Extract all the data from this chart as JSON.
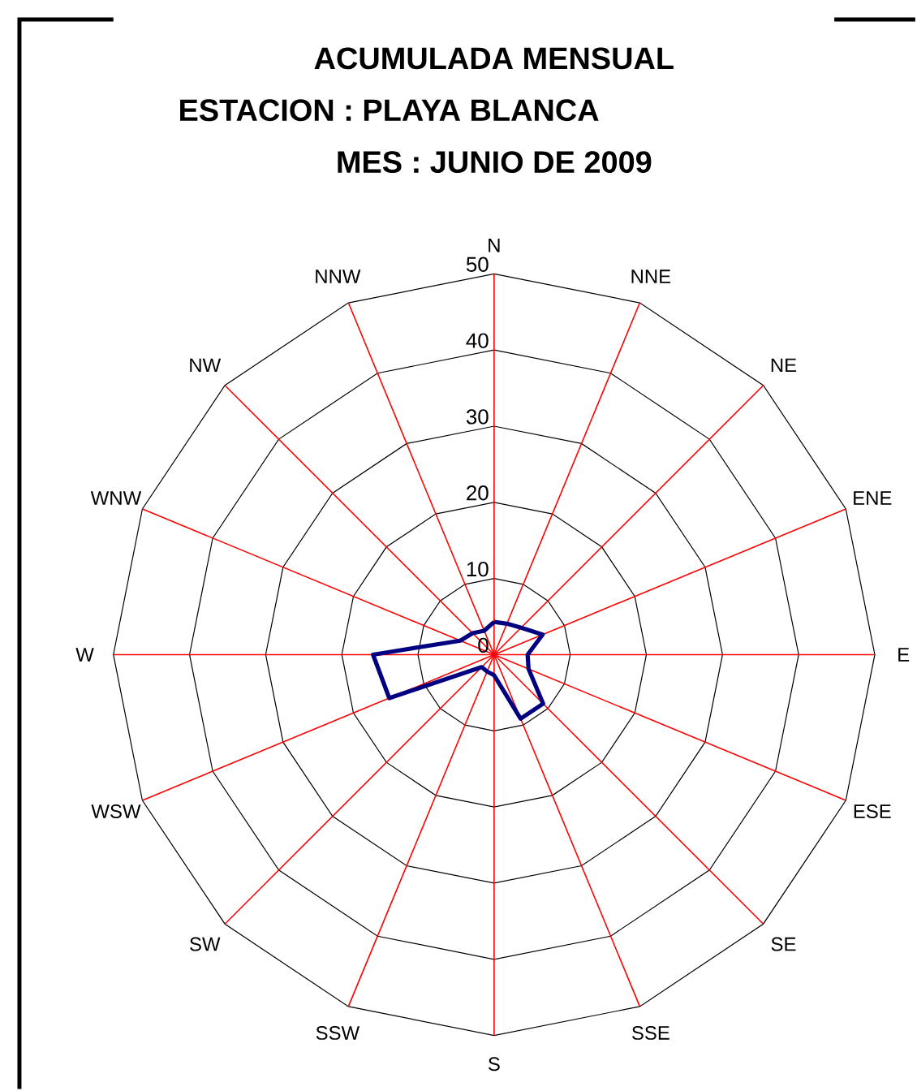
{
  "chart_data": {
    "type": "radar",
    "title": "ACUMULADA MENSUAL",
    "subtitle": "ESTACION : PLAYA BLANCA",
    "annotations": [
      "MES : JUNIO DE 2009"
    ],
    "categories": [
      "N",
      "NNE",
      "NE",
      "ENE",
      "E",
      "ESE",
      "SE",
      "SSE",
      "S",
      "SSW",
      "SW",
      "WSW",
      "W",
      "WNW",
      "NW",
      "NNW"
    ],
    "series": [
      {
        "color": "#000080",
        "values": [
          4.3,
          4.4,
          5.0,
          6.9,
          4.4,
          4.9,
          9.1,
          9.1,
          2.7,
          2.4,
          2.3,
          14.9,
          15.9,
          4.8,
          4.0,
          3.4
        ]
      }
    ],
    "ylim": [
      0,
      50
    ],
    "yticks": [
      0,
      10,
      20,
      30,
      40,
      50
    ],
    "grid": true
  }
}
